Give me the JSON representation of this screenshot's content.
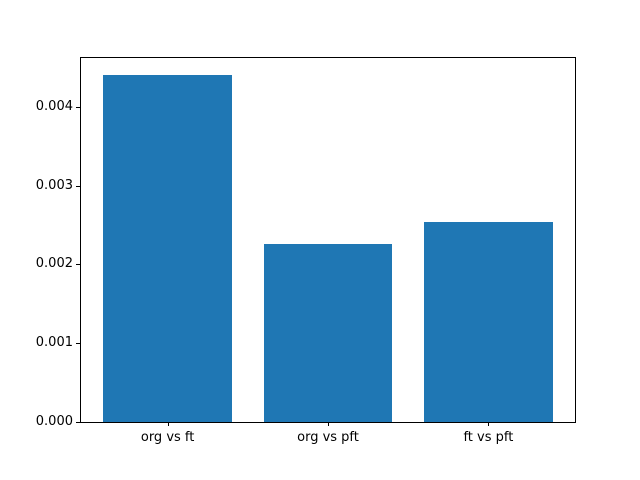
{
  "figure": {
    "background": "#ffffff",
    "spine_color": "#000000",
    "text_color": "#000000"
  },
  "chart_data": {
    "type": "bar",
    "title": "",
    "xlabel": "",
    "ylabel": "",
    "categories": [
      "org vs ft",
      "org vs pft",
      "ft vs pft"
    ],
    "values": [
      0.0044,
      0.00226,
      0.00254
    ],
    "yticks": [
      {
        "value": 0.0,
        "label": "0.000"
      },
      {
        "value": 0.001,
        "label": "0.001"
      },
      {
        "value": 0.002,
        "label": "0.002"
      },
      {
        "value": 0.003,
        "label": "0.003"
      },
      {
        "value": 0.004,
        "label": "0.004"
      }
    ],
    "ylim": [
      0,
      0.00462
    ],
    "xlim": [
      -0.54,
      2.54
    ],
    "bar_width": 0.8,
    "bar_color": "#1f77b4",
    "grid": false,
    "legend": null
  }
}
